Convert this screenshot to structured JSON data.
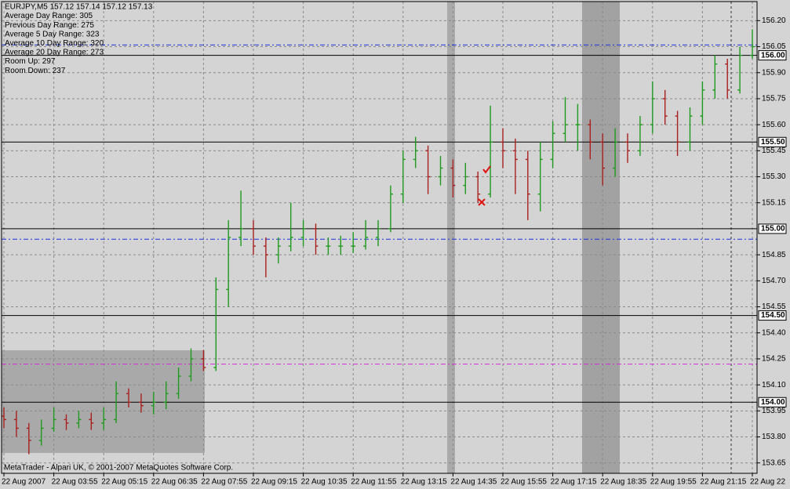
{
  "chart_data": {
    "type": "ohlc",
    "info": [
      "EURJPY,M5  157.12 157.14 157.12 157.13",
      "Average Day  Range: 305",
      "Previous  Day  Range: 275",
      "Average  5 Day Range: 323",
      "Average 10 Day Range: 320",
      "Average 20 Day Range: 273",
      "Room Up:     297",
      "Room Down: 237"
    ],
    "footer": "MetaTrader - Alpari UK, © 2001-2007 MetaQuotes Software Corp.",
    "up_color": "#1f9a1f",
    "down_color": "#a82020",
    "categories": [
      "22 Aug 2007",
      null,
      null,
      null,
      "22 Aug 03:55",
      null,
      null,
      null,
      "22 Aug 05:15",
      null,
      null,
      null,
      "22 Aug 06:35",
      null,
      null,
      null,
      "22 Aug 07:55",
      null,
      null,
      null,
      "22 Aug 09:15",
      null,
      null,
      null,
      "22 Aug 10:35",
      null,
      null,
      null,
      "22 Aug 11:55",
      null,
      null,
      null,
      "22 Aug 13:15",
      null,
      null,
      null,
      "22 Aug 14:35",
      null,
      null,
      null,
      "22 Aug 15:55",
      null,
      null,
      null,
      "22 Aug 17:15",
      null,
      null,
      null,
      "22 Aug 18:35",
      null,
      null,
      null,
      "22 Aug 19:55",
      null,
      null,
      null,
      "22 Aug 21:15",
      null,
      null,
      null,
      "22 Aug 22"
    ],
    "ohlc": [
      [
        153.92,
        153.97,
        153.85,
        153.9
      ],
      [
        153.9,
        153.95,
        153.8,
        153.85
      ],
      [
        153.85,
        153.88,
        153.7,
        153.78
      ],
      [
        153.78,
        153.9,
        153.75,
        153.85
      ],
      [
        153.85,
        153.97,
        153.83,
        153.9
      ],
      [
        153.9,
        153.93,
        153.84,
        153.88
      ],
      [
        153.88,
        153.95,
        153.85,
        153.9
      ],
      [
        153.9,
        153.94,
        153.84,
        153.88
      ],
      [
        153.88,
        153.97,
        153.84,
        153.9
      ],
      [
        153.9,
        154.12,
        153.88,
        154.05
      ],
      [
        154.05,
        154.08,
        153.97,
        154.0
      ],
      [
        154.0,
        154.05,
        153.94,
        153.98
      ],
      [
        153.98,
        154.06,
        153.93,
        154.0
      ],
      [
        154.0,
        154.12,
        153.96,
        154.05
      ],
      [
        154.05,
        154.2,
        154.02,
        154.15
      ],
      [
        154.15,
        154.31,
        154.12,
        154.25
      ],
      [
        154.25,
        154.3,
        154.18,
        154.2
      ],
      [
        154.2,
        154.72,
        154.18,
        154.65
      ],
      [
        154.65,
        155.05,
        154.55,
        154.95
      ],
      [
        154.95,
        155.22,
        154.9,
        155.0
      ],
      [
        155.0,
        155.05,
        154.85,
        154.9
      ],
      [
        154.9,
        154.95,
        154.72,
        154.85
      ],
      [
        154.85,
        154.95,
        154.8,
        154.9
      ],
      [
        154.9,
        155.15,
        154.87,
        154.95
      ],
      [
        154.95,
        155.05,
        154.9,
        155.0
      ],
      [
        155.0,
        155.03,
        154.85,
        154.9
      ],
      [
        154.9,
        154.95,
        154.85,
        154.9
      ],
      [
        154.9,
        154.96,
        154.85,
        154.9
      ],
      [
        154.9,
        154.98,
        154.86,
        154.9
      ],
      [
        154.9,
        155.05,
        154.88,
        154.95
      ],
      [
        154.95,
        155.05,
        154.9,
        155.0
      ],
      [
        155.0,
        155.25,
        154.98,
        155.2
      ],
      [
        155.2,
        155.45,
        155.15,
        155.4
      ],
      [
        155.4,
        155.53,
        155.35,
        155.45
      ],
      [
        155.45,
        155.48,
        155.2,
        155.3
      ],
      [
        155.3,
        155.42,
        155.25,
        155.35
      ],
      [
        155.35,
        155.4,
        155.18,
        155.25
      ],
      [
        155.25,
        155.38,
        155.2,
        155.3
      ],
      [
        155.3,
        155.33,
        155.15,
        155.2
      ],
      [
        155.2,
        155.71,
        155.18,
        155.5
      ],
      [
        155.5,
        155.58,
        155.35,
        155.45
      ],
      [
        155.45,
        155.52,
        155.2,
        155.4
      ],
      [
        155.4,
        155.45,
        155.05,
        155.2
      ],
      [
        155.2,
        155.5,
        155.1,
        155.4
      ],
      [
        155.4,
        155.62,
        155.35,
        155.55
      ],
      [
        155.55,
        155.76,
        155.5,
        155.6
      ],
      [
        155.6,
        155.72,
        155.45,
        155.6
      ],
      [
        155.6,
        155.63,
        155.4,
        155.5
      ],
      [
        155.5,
        155.55,
        155.25,
        155.35
      ],
      [
        155.35,
        155.58,
        155.3,
        155.5
      ],
      [
        155.5,
        155.55,
        155.38,
        155.45
      ],
      [
        155.45,
        155.65,
        155.42,
        155.6
      ],
      [
        155.6,
        155.85,
        155.55,
        155.75
      ],
      [
        155.75,
        155.8,
        155.6,
        155.65
      ],
      [
        155.65,
        155.68,
        155.42,
        155.5
      ],
      [
        155.5,
        155.7,
        155.45,
        155.65
      ],
      [
        155.65,
        155.85,
        155.6,
        155.8
      ],
      [
        155.8,
        156.0,
        155.75,
        155.95
      ],
      [
        155.95,
        155.98,
        155.75,
        155.8
      ],
      [
        155.8,
        156.05,
        155.78,
        156.0
      ],
      [
        156.0,
        156.15,
        155.98,
        156.05
      ]
    ],
    "ylim": [
      153.59,
      156.31
    ],
    "yticks": [
      {
        "value": 153.65,
        "label": "153.65"
      },
      {
        "value": 153.8,
        "label": "153.80"
      },
      {
        "value": 153.95,
        "label": "153.95"
      },
      {
        "value": 154.1,
        "label": "154.10"
      },
      {
        "value": 154.25,
        "label": "154.25"
      },
      {
        "value": 154.4,
        "label": "154.40"
      },
      {
        "value": 154.55,
        "label": "154.55"
      },
      {
        "value": 154.7,
        "label": "154.70"
      },
      {
        "value": 154.85,
        "label": "154.85"
      },
      {
        "value": 155.15,
        "label": "155.15"
      },
      {
        "value": 155.3,
        "label": "155.30"
      },
      {
        "value": 155.45,
        "label": "155.45"
      },
      {
        "value": 155.6,
        "label": "155.60"
      },
      {
        "value": 155.75,
        "label": "155.75"
      },
      {
        "value": 155.9,
        "label": "155.90"
      },
      {
        "value": 156.05,
        "label": "156.05"
      },
      {
        "value": 156.2,
        "label": "156.20"
      }
    ],
    "levels": [
      {
        "value": 154,
        "label": "154.00"
      },
      {
        "value": 154.5,
        "label": "154.50"
      },
      {
        "value": 155,
        "label": "155.00"
      },
      {
        "value": 155.5,
        "label": "155.50"
      },
      {
        "value": 156,
        "label": "156.00"
      }
    ],
    "ref_lines": [
      {
        "value": 156.06,
        "color": "#2030e0"
      },
      {
        "value": 154.94,
        "color": "#2030e0"
      },
      {
        "value": 154.22,
        "color": "#d030d0"
      }
    ],
    "grid": true
  }
}
